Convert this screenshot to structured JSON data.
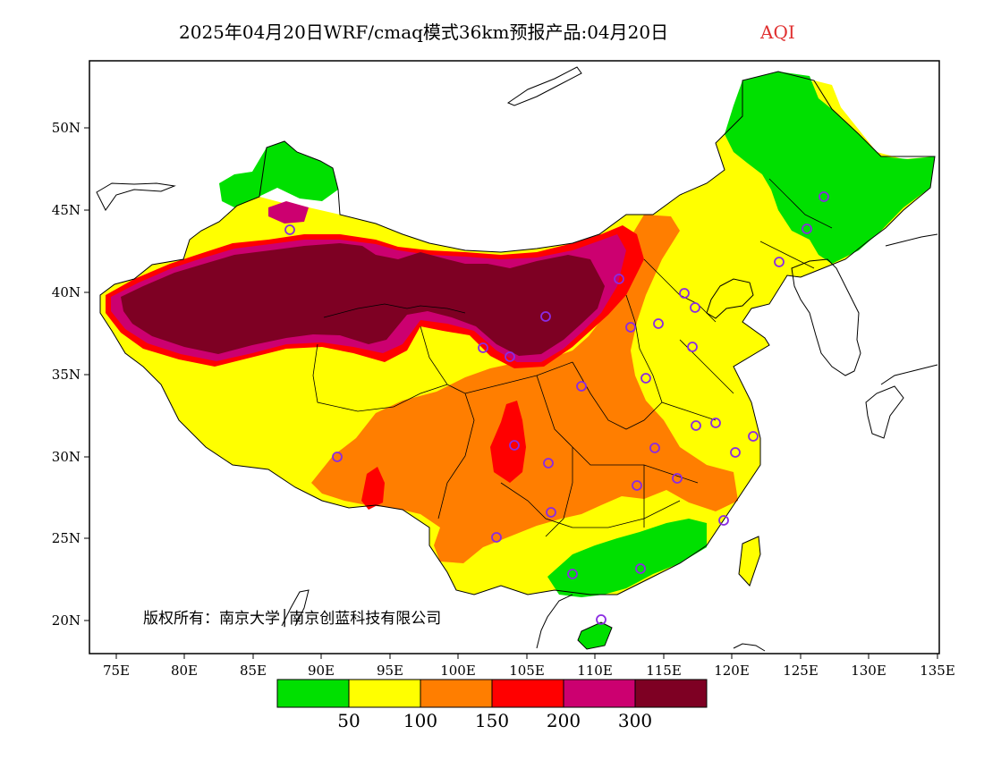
{
  "title": {
    "main": "2025年04月20日WRF/cmaq模式36km预报产品:04月20日",
    "variable": "AQI"
  },
  "axes": {
    "x_ticks": [
      "75E",
      "80E",
      "85E",
      "90E",
      "95E",
      "100E",
      "105E",
      "110E",
      "115E",
      "120E",
      "125E",
      "130E",
      "135E"
    ],
    "y_ticks": [
      "50N",
      "45N",
      "40N",
      "35N",
      "30N",
      "25N",
      "20N"
    ]
  },
  "copyright": "版权所有：南京大学│南京创蓝科技有限公司",
  "legend": {
    "thresholds": [
      "50",
      "100",
      "150",
      "200",
      "300"
    ],
    "colors": [
      "#00e000",
      "#ffff00",
      "#ff7e00",
      "#ff0000",
      "#cc0070",
      "#7e0023"
    ]
  },
  "colors": {
    "good": "#00e000",
    "moderate": "#ffff00",
    "usg": "#ff7e00",
    "unhealthy": "#ff0000",
    "very_unhealthy": "#cc0070",
    "hazardous": "#7e0023",
    "station_marker": "#8a2be2"
  }
}
